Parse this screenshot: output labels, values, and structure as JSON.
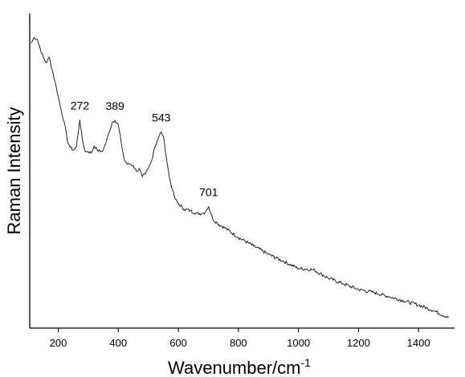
{
  "chart_data": {
    "type": "line",
    "title": "",
    "xlabel_base": "Wavenumber/cm",
    "xlabel_sup": "-1",
    "ylabel": "Raman Intensity",
    "xlim": [
      105,
      1520
    ],
    "ylim": [
      0,
      1
    ],
    "grid": false,
    "legend": "none",
    "y_tick_labels_shown": false,
    "x_ticks": [
      200,
      400,
      600,
      800,
      1000,
      1200,
      1400
    ],
    "peaks": [
      {
        "label": "272",
        "x": 272,
        "y": 0.702
      },
      {
        "label": "389",
        "x": 389,
        "y": 0.701
      },
      {
        "label": "543",
        "x": 543,
        "y": 0.659
      },
      {
        "label": "701",
        "x": 701,
        "y": 0.395
      }
    ],
    "series": [
      {
        "x": [
          110,
          120,
          130,
          140,
          150,
          160,
          170,
          180,
          190,
          200,
          210,
          220,
          230,
          240,
          250,
          260,
          265,
          272,
          280,
          290,
          300,
          310,
          320,
          330,
          340,
          350,
          360,
          370,
          380,
          389,
          400,
          410,
          420,
          430,
          440,
          450,
          460,
          470,
          480,
          490,
          500,
          510,
          520,
          530,
          543,
          550,
          560,
          570,
          580,
          590,
          600,
          620,
          640,
          660,
          680,
          690,
          695,
          701,
          708,
          715,
          730,
          760,
          800,
          850,
          900,
          950,
          1000,
          1050,
          1100,
          1150,
          1200,
          1250,
          1300,
          1350,
          1400,
          1450,
          1500
        ],
        "y": [
          0.975,
          0.995,
          0.99,
          0.955,
          0.925,
          0.905,
          0.925,
          0.88,
          0.835,
          0.785,
          0.735,
          0.695,
          0.63,
          0.605,
          0.595,
          0.605,
          0.645,
          0.702,
          0.635,
          0.59,
          0.59,
          0.585,
          0.61,
          0.595,
          0.59,
          0.595,
          0.625,
          0.66,
          0.695,
          0.701,
          0.685,
          0.62,
          0.56,
          0.545,
          0.545,
          0.54,
          0.52,
          0.53,
          0.5,
          0.51,
          0.53,
          0.555,
          0.6,
          0.63,
          0.659,
          0.645,
          0.57,
          0.5,
          0.455,
          0.42,
          0.405,
          0.385,
          0.38,
          0.37,
          0.37,
          0.375,
          0.385,
          0.395,
          0.37,
          0.35,
          0.335,
          0.315,
          0.285,
          0.255,
          0.225,
          0.2,
          0.175,
          0.17,
          0.14,
          0.12,
          0.1,
          0.09,
          0.075,
          0.06,
          0.045,
          0.025,
          0.0
        ]
      }
    ]
  }
}
